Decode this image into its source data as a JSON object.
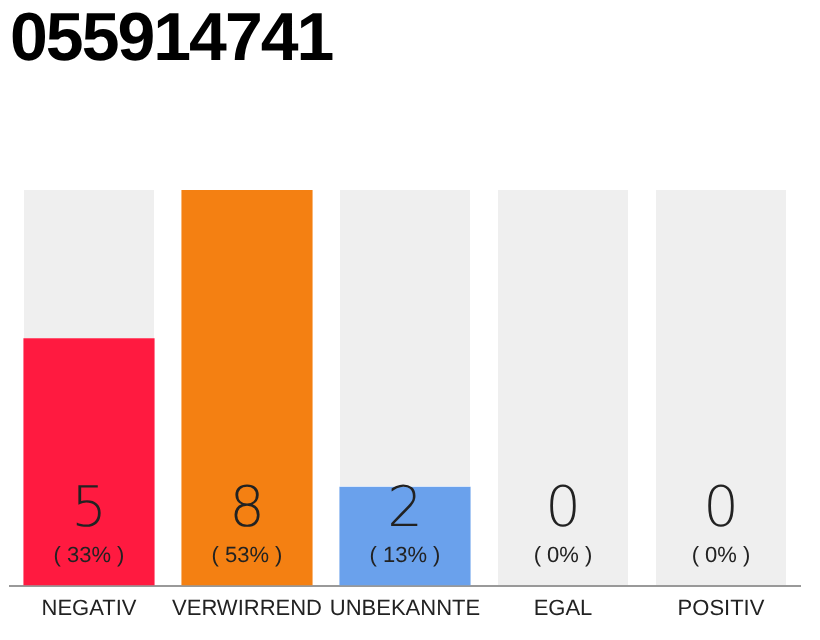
{
  "chart_data": {
    "type": "bar",
    "title": "055914741",
    "categories": [
      "NEGATIV",
      "VERWIRREND",
      "UNBEKANNTE",
      "EGAL",
      "POSITIV"
    ],
    "values": [
      5,
      8,
      2,
      0,
      0
    ],
    "colors": [
      "#ff1a40",
      "#f48012",
      "#6aa1ec",
      "#6aa1ec",
      "#6aa1ec"
    ],
    "value_labels": [
      "5\n( 33% )",
      "8\n( 53% )",
      "2\n( 13% )",
      "0\n( 0% )",
      "0\n( 0% )"
    ],
    "grid": false,
    "legend": false
  }
}
